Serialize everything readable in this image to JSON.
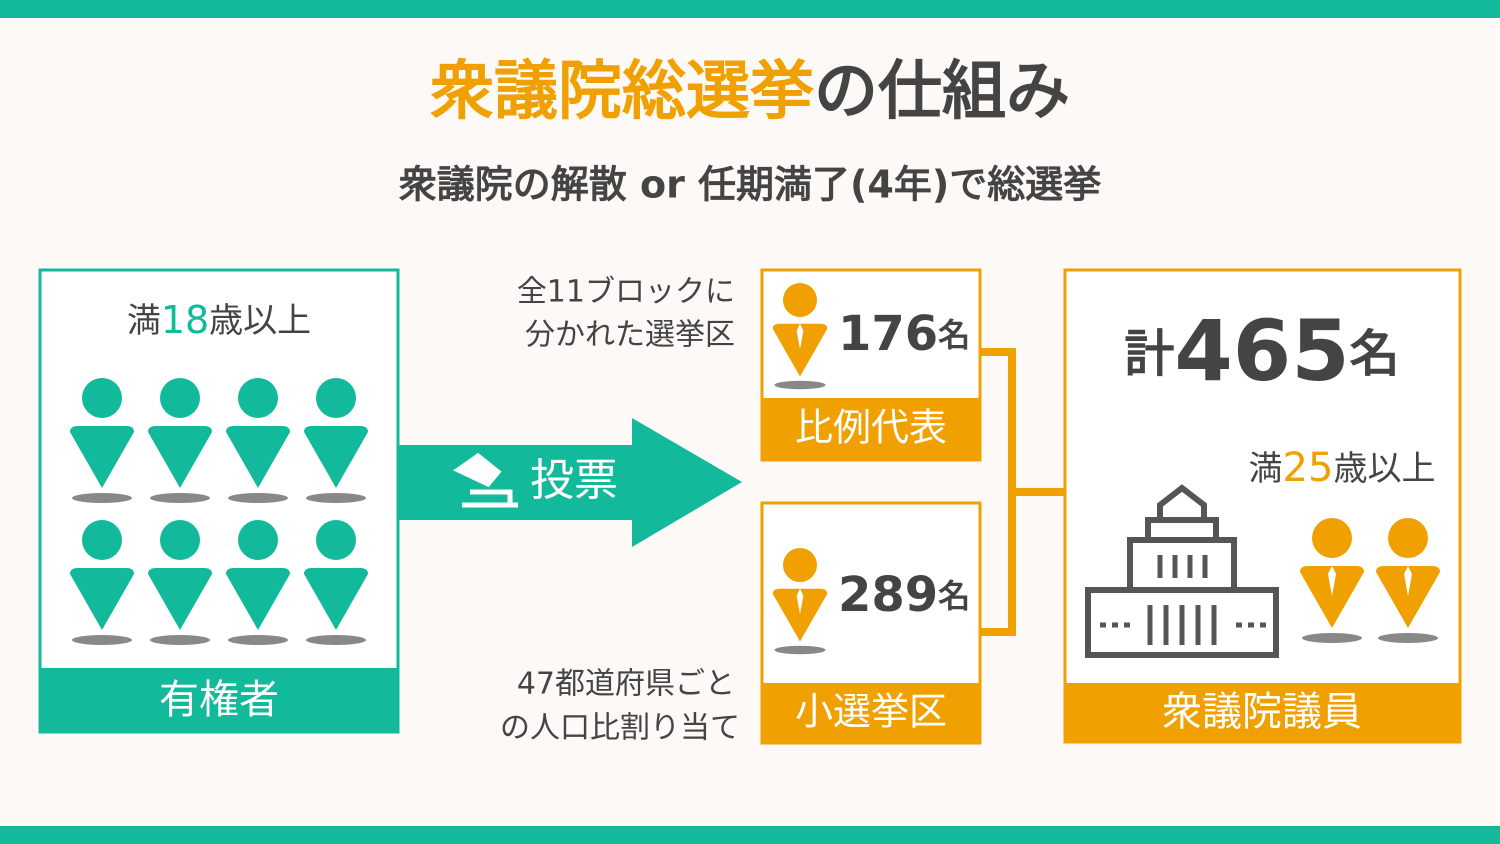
{
  "header": {
    "title_highlight": "衆議院総選挙",
    "title_rest": "の仕組み",
    "subtitle": "衆議院の解散 or 任期満了(4年)で総選挙"
  },
  "voters": {
    "age_prefix": "満",
    "age": "18",
    "age_suffix": "歳以上",
    "label": "有権者"
  },
  "arrow": {
    "label": "投票"
  },
  "proportional": {
    "note": [
      "全11ブロックに",
      "分かれた選挙区"
    ],
    "count": "176",
    "unit": "名",
    "label": "比例代表"
  },
  "single_seat": {
    "note": [
      "47都道府県ごと",
      "の人口比割り当て"
    ],
    "count": "289",
    "unit": "名",
    "label": "小選挙区"
  },
  "members": {
    "total_prefix": "計",
    "total": "465",
    "total_unit": "名",
    "age_prefix": "満",
    "age": "25",
    "age_suffix": "歳以上",
    "label": "衆議院議員"
  }
}
